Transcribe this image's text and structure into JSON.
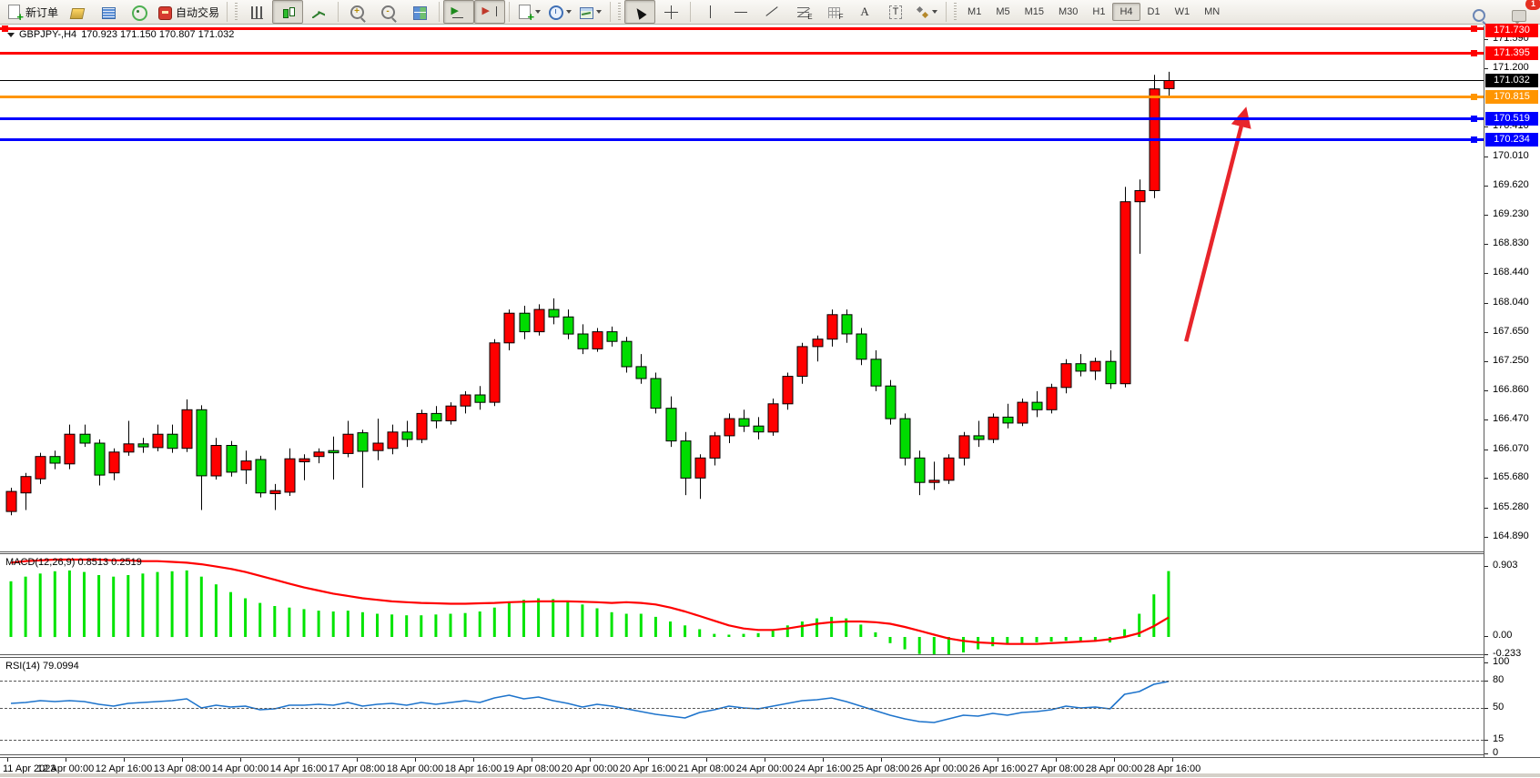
{
  "toolbar": {
    "new_order": "新订单",
    "auto_trading": "自动交易",
    "icon_glyphs": {
      "text_tool": "A",
      "label_tool": "T",
      "fibo_suffix": "E",
      "grid_suffix": "F",
      "play": "▶",
      "shift": "▶"
    },
    "timeframes": [
      "M1",
      "M5",
      "M15",
      "M30",
      "H1",
      "H4",
      "D1",
      "W1",
      "MN"
    ],
    "active_timeframe": "H4",
    "notification_count": "1"
  },
  "chart_data": [
    {
      "type": "candlestick",
      "title": "GBPJPY-,H4",
      "current_ohlc": "170.923 171.150 170.807 171.032",
      "up_color": "#ff0000",
      "down_color": "#00dc00",
      "ylim": [
        164.89,
        171.73
      ],
      "y_tick_labels": [
        "171.590",
        "171.200",
        "170.410",
        "170.010",
        "169.620",
        "169.230",
        "168.830",
        "168.440",
        "168.040",
        "167.650",
        "167.250",
        "166.860",
        "166.470",
        "166.070",
        "165.680",
        "165.280",
        "164.890"
      ],
      "x_tick_labels": [
        "11 Apr 2023",
        "12 Apr 00:00",
        "12 Apr 16:00",
        "13 Apr 08:00",
        "14 Apr 00:00",
        "14 Apr 16:00",
        "17 Apr 08:00",
        "18 Apr 00:00",
        "18 Apr 16:00",
        "19 Apr 08:00",
        "20 Apr 00:00",
        "20 Apr 16:00",
        "21 Apr 08:00",
        "24 Apr 00:00",
        "24 Apr 16:00",
        "25 Apr 08:00",
        "26 Apr 00:00",
        "26 Apr 16:00",
        "27 Apr 08:00",
        "28 Apr 00:00",
        "28 Apr 16:00"
      ],
      "hlines": [
        {
          "label": "171.730",
          "value": 171.73,
          "color": "#ff0000",
          "thickness": 3,
          "handles": "both"
        },
        {
          "label": "171.395",
          "value": 171.395,
          "color": "#ff0000",
          "thickness": 3,
          "handles": "right"
        },
        {
          "label": "171.032",
          "value": 171.032,
          "color": "#000000",
          "thickness": 1,
          "handles": "none"
        },
        {
          "label": "170.815",
          "value": 170.815,
          "color": "#ff9500",
          "thickness": 3,
          "handles": "right"
        },
        {
          "label": "170.519",
          "value": 170.519,
          "color": "#0000ff",
          "thickness": 3,
          "handles": "right"
        },
        {
          "label": "170.234",
          "value": 170.234,
          "color": "#0000ff",
          "thickness": 3,
          "handles": "right"
        }
      ],
      "trend_arrow": {
        "color": "#e8252b",
        "x1_bar": 80.2,
        "y1_price": 167.52,
        "x2_bar": 84.2,
        "y2_price": 170.6
      },
      "candles": [
        [
          165.23,
          165.55,
          165.18,
          165.5
        ],
        [
          165.48,
          165.75,
          165.25,
          165.7
        ],
        [
          165.67,
          166.02,
          165.6,
          165.97
        ],
        [
          165.97,
          166.05,
          165.8,
          165.88
        ],
        [
          165.87,
          166.4,
          165.8,
          166.27
        ],
        [
          166.27,
          166.4,
          166.1,
          166.15
        ],
        [
          166.15,
          166.2,
          165.58,
          165.72
        ],
        [
          165.75,
          166.08,
          165.65,
          166.03
        ],
        [
          166.03,
          166.45,
          165.98,
          166.14
        ],
        [
          166.14,
          166.22,
          166.02,
          166.1
        ],
        [
          166.09,
          166.4,
          166.04,
          166.27
        ],
        [
          166.27,
          166.4,
          166.02,
          166.08
        ],
        [
          166.08,
          166.74,
          166.03,
          166.6
        ],
        [
          166.6,
          166.66,
          165.25,
          165.71
        ],
        [
          165.71,
          166.22,
          165.66,
          166.12
        ],
        [
          166.12,
          166.18,
          165.7,
          165.76
        ],
        [
          165.79,
          166.05,
          165.6,
          165.91
        ],
        [
          165.93,
          165.98,
          165.42,
          165.48
        ],
        [
          165.47,
          165.6,
          165.25,
          165.51
        ],
        [
          165.49,
          166.08,
          165.44,
          165.94
        ],
        [
          165.9,
          166.0,
          165.65,
          165.94
        ],
        [
          165.97,
          166.08,
          165.88,
          166.03
        ],
        [
          166.05,
          166.24,
          165.66,
          166.02
        ],
        [
          166.01,
          166.45,
          165.96,
          166.27
        ],
        [
          166.29,
          166.33,
          165.55,
          166.04
        ],
        [
          166.05,
          166.48,
          165.92,
          166.15
        ],
        [
          166.08,
          166.4,
          166.0,
          166.3
        ],
        [
          166.3,
          166.45,
          166.1,
          166.2
        ],
        [
          166.2,
          166.6,
          166.15,
          166.55
        ],
        [
          166.55,
          166.65,
          166.35,
          166.45
        ],
        [
          166.45,
          166.7,
          166.4,
          166.65
        ],
        [
          166.65,
          166.85,
          166.55,
          166.8
        ],
        [
          166.8,
          166.92,
          166.6,
          166.7
        ],
        [
          166.7,
          167.55,
          166.65,
          167.5
        ],
        [
          167.5,
          167.95,
          167.4,
          167.9
        ],
        [
          167.9,
          168.0,
          167.55,
          167.65
        ],
        [
          167.65,
          168.02,
          167.6,
          167.95
        ],
        [
          167.95,
          168.1,
          167.75,
          167.85
        ],
        [
          167.85,
          167.95,
          167.55,
          167.62
        ],
        [
          167.62,
          167.75,
          167.35,
          167.42
        ],
        [
          167.42,
          167.7,
          167.38,
          167.65
        ],
        [
          167.65,
          167.72,
          167.45,
          167.52
        ],
        [
          167.52,
          167.58,
          167.1,
          167.18
        ],
        [
          167.18,
          167.35,
          166.95,
          167.02
        ],
        [
          167.02,
          167.1,
          166.55,
          166.62
        ],
        [
          166.62,
          166.78,
          166.1,
          166.18
        ],
        [
          166.18,
          166.3,
          165.45,
          165.68
        ],
        [
          165.68,
          166.0,
          165.4,
          165.95
        ],
        [
          165.95,
          166.3,
          165.85,
          166.25
        ],
        [
          166.25,
          166.55,
          166.15,
          166.48
        ],
        [
          166.48,
          166.6,
          166.3,
          166.38
        ],
        [
          166.38,
          166.5,
          166.2,
          166.3
        ],
        [
          166.3,
          166.75,
          166.25,
          166.68
        ],
        [
          166.68,
          167.1,
          166.6,
          167.05
        ],
        [
          167.05,
          167.5,
          166.95,
          167.45
        ],
        [
          167.45,
          167.6,
          167.25,
          167.55
        ],
        [
          167.55,
          167.95,
          167.45,
          167.88
        ],
        [
          167.88,
          167.95,
          167.5,
          167.62
        ],
        [
          167.62,
          167.7,
          167.2,
          167.28
        ],
        [
          167.28,
          167.4,
          166.85,
          166.92
        ],
        [
          166.92,
          167.0,
          166.4,
          166.48
        ],
        [
          166.48,
          166.55,
          165.85,
          165.95
        ],
        [
          165.95,
          166.05,
          165.45,
          165.62
        ],
        [
          165.62,
          165.9,
          165.52,
          165.65
        ],
        [
          165.65,
          166.0,
          165.6,
          165.95
        ],
        [
          165.95,
          166.3,
          165.85,
          166.25
        ],
        [
          166.25,
          166.45,
          166.1,
          166.2
        ],
        [
          166.2,
          166.55,
          166.15,
          166.5
        ],
        [
          166.5,
          166.68,
          166.35,
          166.42
        ],
        [
          166.42,
          166.75,
          166.38,
          166.7
        ],
        [
          166.7,
          166.85,
          166.5,
          166.6
        ],
        [
          166.6,
          166.95,
          166.55,
          166.9
        ],
        [
          166.9,
          167.28,
          166.82,
          167.22
        ],
        [
          167.22,
          167.35,
          167.05,
          167.12
        ],
        [
          167.12,
          167.3,
          167.0,
          167.25
        ],
        [
          167.25,
          167.4,
          166.88,
          166.95
        ],
        [
          166.95,
          169.6,
          166.9,
          169.4
        ],
        [
          169.4,
          169.7,
          168.7,
          169.55
        ],
        [
          169.55,
          171.11,
          169.45,
          170.92
        ],
        [
          170.923,
          171.15,
          170.807,
          171.032
        ]
      ]
    },
    {
      "type": "bar",
      "name": "MACD(12,26,9)",
      "display_values": "0.8513 0.2519",
      "histogram_color": "#00e400",
      "signal_color": "#ff0000",
      "yticks": [
        "0.903",
        "0.00",
        "-0.233"
      ],
      "ylim": [
        -0.27,
        1.05
      ],
      "histogram": [
        0.72,
        0.78,
        0.82,
        0.85,
        0.86,
        0.84,
        0.8,
        0.78,
        0.8,
        0.82,
        0.84,
        0.85,
        0.86,
        0.78,
        0.68,
        0.58,
        0.5,
        0.44,
        0.4,
        0.38,
        0.36,
        0.34,
        0.33,
        0.34,
        0.32,
        0.3,
        0.29,
        0.28,
        0.28,
        0.29,
        0.3,
        0.31,
        0.33,
        0.38,
        0.44,
        0.48,
        0.5,
        0.49,
        0.46,
        0.42,
        0.37,
        0.32,
        0.3,
        0.3,
        0.26,
        0.2,
        0.15,
        0.1,
        0.04,
        0.03,
        0.04,
        0.05,
        0.08,
        0.15,
        0.2,
        0.24,
        0.26,
        0.24,
        0.16,
        0.06,
        -0.08,
        -0.16,
        -0.22,
        -0.25,
        -0.24,
        -0.2,
        -0.16,
        -0.12,
        -0.1,
        -0.08,
        -0.07,
        -0.06,
        -0.05,
        -0.05,
        -0.06,
        -0.07,
        0.1,
        0.3,
        0.55,
        0.8513
      ],
      "signal_line": [
        0.96,
        0.98,
        0.99,
        1.0,
        1.0,
        1.0,
        1.0,
        0.99,
        0.99,
        0.98,
        0.98,
        0.97,
        0.96,
        0.94,
        0.91,
        0.88,
        0.84,
        0.79,
        0.74,
        0.69,
        0.64,
        0.6,
        0.56,
        0.53,
        0.5,
        0.48,
        0.46,
        0.45,
        0.44,
        0.435,
        0.43,
        0.43,
        0.435,
        0.44,
        0.45,
        0.455,
        0.46,
        0.46,
        0.46,
        0.455,
        0.45,
        0.44,
        0.45,
        0.44,
        0.42,
        0.38,
        0.33,
        0.27,
        0.21,
        0.15,
        0.11,
        0.09,
        0.09,
        0.11,
        0.14,
        0.17,
        0.19,
        0.2,
        0.2,
        0.19,
        0.17,
        0.13,
        0.08,
        0.03,
        -0.02,
        -0.05,
        -0.07,
        -0.08,
        -0.09,
        -0.09,
        -0.09,
        -0.08,
        -0.07,
        -0.06,
        -0.05,
        -0.03,
        0.0,
        0.05,
        0.14,
        0.2519
      ]
    },
    {
      "type": "line",
      "name": "RSI(14)",
      "display_value": "79.0994",
      "line_color": "#1e74cc",
      "levels": [
        80,
        50,
        15
      ],
      "yticks": [
        "100",
        "80",
        "50",
        "15",
        "0"
      ],
      "ylim": [
        0,
        100
      ],
      "values": [
        55,
        56,
        58,
        57,
        58,
        57,
        54,
        52,
        55,
        56,
        57,
        58,
        60,
        50,
        53,
        51,
        52,
        48,
        49,
        53,
        53,
        54,
        53,
        56,
        52,
        54,
        55,
        53,
        56,
        54,
        56,
        58,
        56,
        61,
        64,
        60,
        62,
        58,
        55,
        51,
        54,
        52,
        49,
        46,
        43,
        41,
        39,
        45,
        48,
        52,
        50,
        49,
        52,
        55,
        58,
        59,
        61,
        57,
        52,
        47,
        42,
        38,
        35,
        34,
        38,
        42,
        41,
        44,
        42,
        45,
        46,
        48,
        52,
        50,
        51,
        49,
        65,
        68,
        76,
        79.1
      ]
    }
  ]
}
